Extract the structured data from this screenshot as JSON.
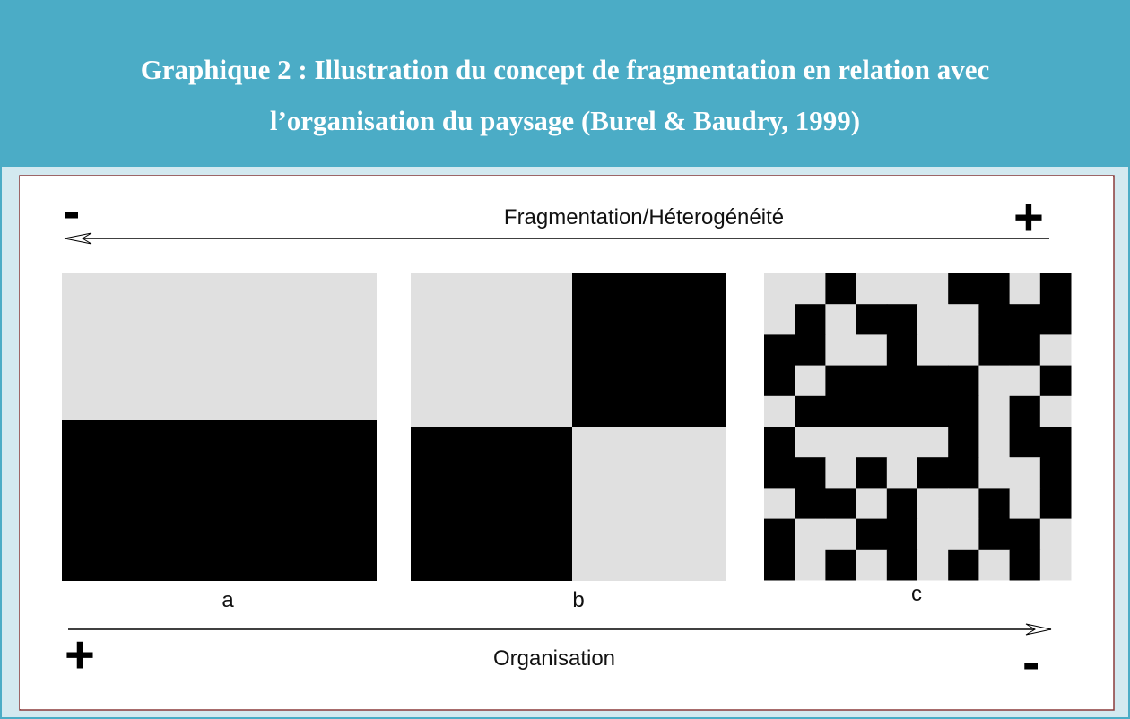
{
  "header": {
    "title_lines": [
      "Graphique 2 : Illustration du concept de fragmentation en relation avec",
      "l’organisation du paysage (Burel & Baudry, 1999)"
    ]
  },
  "top_axis": {
    "left_sign": "-",
    "label": "Fragmentation/Héterogénéité",
    "right_sign": "+"
  },
  "panels": {
    "labels": [
      "a",
      "b",
      "c"
    ]
  },
  "bottom_axis": {
    "left_sign": "+",
    "label": "Organisation",
    "right_sign": "-"
  }
}
